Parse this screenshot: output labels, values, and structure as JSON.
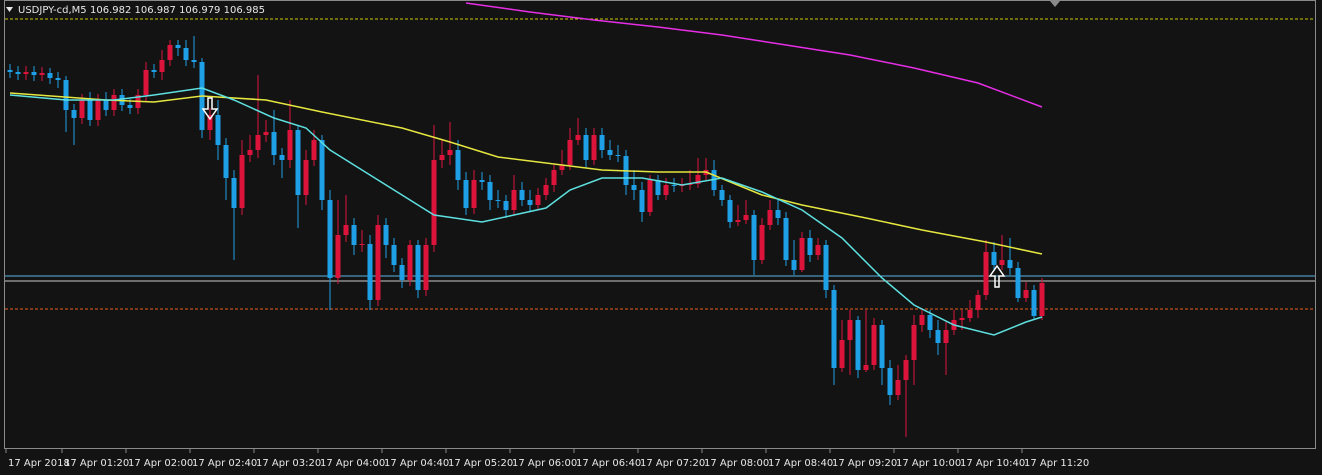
{
  "chart_data": {
    "type": "candlestick",
    "symbol": "USDJPY-cd,M5",
    "ohlc_text": "106.982 106.987 106.979 106.985",
    "ylim": [
      106.81,
      107.26
    ],
    "up_color": "#dc143c",
    "down_color": "#1e9fe6",
    "categories": [
      "17 Apr 2018",
      null,
      null,
      null,
      null,
      null,
      null,
      "17 Apr 01:20",
      null,
      null,
      null,
      null,
      null,
      null,
      null,
      "17 Apr 02:00",
      null,
      null,
      null,
      null,
      null,
      null,
      null,
      "17 Apr 02:40",
      null,
      null,
      null,
      null,
      null,
      null,
      null,
      "17 Apr 03:20",
      null,
      null,
      null,
      null,
      null,
      null,
      null,
      "17 Apr 04:00",
      null,
      null,
      null,
      null,
      null,
      null,
      null,
      "17 Apr 04:40",
      null,
      null,
      null,
      null,
      null,
      null,
      null,
      "17 Apr 05:20",
      null,
      null,
      null,
      null,
      null,
      null,
      null,
      "17 Apr 06:00",
      null,
      null,
      null,
      null,
      null,
      null,
      null,
      "17 Apr 06:40",
      null,
      null,
      null,
      null,
      null,
      null,
      null,
      "17 Apr 07:20",
      null,
      null,
      null,
      null,
      null,
      null,
      null,
      "17 Apr 08:00",
      null,
      null,
      null,
      null,
      null,
      null,
      null,
      "17 Apr 08:40",
      null,
      null,
      null,
      null,
      null,
      null,
      null,
      "17 Apr 09:20",
      null,
      null,
      null,
      null,
      null,
      null,
      null,
      "17 Apr 10:00",
      null,
      null,
      null,
      null,
      null,
      null,
      null,
      "17 Apr 10:40",
      null,
      null,
      null,
      null,
      null,
      null,
      null,
      "17 Apr 11:20",
      null,
      null
    ],
    "open": [
      107.19,
      107.188,
      107.186,
      107.188,
      107.185,
      107.187,
      107.182,
      107.18,
      107.15,
      107.142,
      107.16,
      107.14,
      107.16,
      107.15,
      107.165,
      107.155,
      107.152,
      107.165,
      107.19,
      107.188,
      107.2,
      107.215,
      107.212,
      107.2,
      107.198,
      107.13,
      107.145,
      107.115,
      107.082,
      107.052,
      107.105,
      107.11,
      107.125,
      107.128,
      107.105,
      107.1,
      107.13,
      107.065,
      107.1,
      107.12,
      107.06,
      106.982,
      107.025,
      107.035,
      107.015,
      107.016,
      106.96,
      107.035,
      107.015,
      106.995,
      106.98,
      107.015,
      106.97,
      107.015,
      107.1,
      107.105,
      107.11,
      107.08,
      107.052,
      107.08,
      107.078,
      107.06,
      107.059,
      107.05,
      107.07,
      107.06,
      107.055,
      107.065,
      107.075,
      107.09,
      107.095,
      107.12,
      107.125,
      107.1,
      107.125,
      107.11,
      107.105,
      107.104,
      107.075,
      107.07,
      107.048,
      107.08,
      107.065,
      107.075,
      107.074,
      107.075,
      107.076,
      107.085,
      107.09,
      107.07,
      107.06,
      107.038,
      107.04,
      107.045,
      107,
      107.035,
      107.05,
      107.042,
      107,
      106.99,
      107.022,
      107.005,
      107.015,
      106.97,
      106.892,
      106.92,
      106.94,
      106.89,
      106.895,
      106.935,
      106.892,
      106.865,
      106.88,
      106.9,
      106.935,
      106.945,
      106.93,
      106.917,
      106.93,
      106.94,
      106.942,
      106.95,
      106.965,
      107.008,
      106.995,
      107,
      106.992,
      106.962,
      106.97,
      106.944
    ],
    "high": [
      107.196,
      107.194,
      107.194,
      107.194,
      107.193,
      107.192,
      107.188,
      107.184,
      107.156,
      107.166,
      107.168,
      107.166,
      107.168,
      107.171,
      107.171,
      107.161,
      107.171,
      107.198,
      107.196,
      107.21,
      107.22,
      107.22,
      107.22,
      107.224,
      107.202,
      107.152,
      107.16,
      107.122,
      107.09,
      107.12,
      107.125,
      107.185,
      107.14,
      107.15,
      107.112,
      107.16,
      107.135,
      107.11,
      107.13,
      107.125,
      107.07,
      107.06,
      107.065,
      107.042,
      107.03,
      107.025,
      107.045,
      107.042,
      107.022,
      107.002,
      107.02,
      107.02,
      107.022,
      107.135,
      107.12,
      107.138,
      107.12,
      107.088,
      107.09,
      107.088,
      107.085,
      107.07,
      107.065,
      107.085,
      107.078,
      107.07,
      107.072,
      107.082,
      107.095,
      107.11,
      107.132,
      107.142,
      107.132,
      107.132,
      107.132,
      107.12,
      107.115,
      107.11,
      107.09,
      107.078,
      107.085,
      107.085,
      107.082,
      107.082,
      107.082,
      107.09,
      107.102,
      107.102,
      107.1,
      107.075,
      107.065,
      107.055,
      107.06,
      107.05,
      107.042,
      107.06,
      107.06,
      107.048,
      107.02,
      107.028,
      107.03,
      107.022,
      107.02,
      106.975,
      106.94,
      106.95,
      106.944,
      106.95,
      106.942,
      106.94,
      106.9,
      106.895,
      106.905,
      106.945,
      106.952,
      106.95,
      106.94,
      106.938,
      106.95,
      106.95,
      106.96,
      106.97,
      107.02,
      107.018,
      107.025,
      107.022,
      106.998,
      106.978,
      106.975,
      106.982
    ],
    "low": [
      107.182,
      107.18,
      107.18,
      107.179,
      107.179,
      107.176,
      107.172,
      107.128,
      107.115,
      107.136,
      107.134,
      107.134,
      107.144,
      107.144,
      107.149,
      107.146,
      107.146,
      107.159,
      107.182,
      107.18,
      107.194,
      107.204,
      107.194,
      107.192,
      107.122,
      107.12,
      107.1,
      107.06,
      107,
      107.045,
      107.098,
      107.102,
      107.118,
      107.095,
      107.082,
      107.092,
      107.032,
      107.055,
      107.094,
      107.05,
      106.95,
      106.976,
      107.018,
      107.005,
      107.008,
      106.95,
      106.954,
      107.002,
      106.988,
      106.972,
      106.974,
      106.962,
      106.964,
      107.008,
      107.092,
      107.095,
      107.07,
      107.045,
      107.046,
      107.07,
      107.05,
      107.052,
      107.042,
      107.045,
      107.054,
      107.048,
      107.05,
      107.06,
      107.068,
      107.085,
      107.09,
      107.115,
      107.092,
      107.095,
      107.102,
      107.1,
      107.098,
      107.065,
      107.06,
      107.038,
      107.044,
      107.06,
      107.06,
      107.068,
      107.068,
      107.07,
      107.072,
      107.08,
      107.064,
      107.054,
      107.032,
      107.034,
      107.036,
      106.985,
      106.996,
      107.03,
      107.035,
      106.994,
      106.985,
      106.988,
      106.998,
      107,
      106.962,
      106.875,
      106.888,
      106.885,
      106.882,
      106.888,
      106.89,
      106.875,
      106.855,
      106.86,
      106.823,
      106.875,
      106.928,
      106.922,
      106.905,
      106.885,
      106.925,
      106.93,
      106.938,
      106.942,
      106.96,
      106.99,
      106.99,
      106.985,
      106.958,
      106.958,
      106.94,
      106.94
    ],
    "close": [
      107.188,
      107.186,
      107.188,
      107.185,
      107.187,
      107.182,
      107.18,
      107.15,
      107.142,
      107.16,
      107.14,
      107.16,
      107.15,
      107.165,
      107.155,
      107.152,
      107.165,
      107.19,
      107.188,
      107.2,
      107.215,
      107.212,
      107.2,
      107.198,
      107.13,
      107.145,
      107.115,
      107.082,
      107.052,
      107.105,
      107.11,
      107.125,
      107.128,
      107.105,
      107.1,
      107.13,
      107.065,
      107.1,
      107.12,
      107.06,
      106.982,
      107.025,
      107.035,
      107.015,
      107.016,
      106.96,
      107.035,
      107.015,
      106.995,
      106.98,
      107.015,
      106.97,
      107.015,
      107.1,
      107.105,
      107.11,
      107.08,
      107.052,
      107.08,
      107.078,
      107.06,
      107.059,
      107.05,
      107.07,
      107.06,
      107.055,
      107.065,
      107.075,
      107.09,
      107.095,
      107.12,
      107.125,
      107.1,
      107.125,
      107.11,
      107.105,
      107.104,
      107.075,
      107.07,
      107.048,
      107.08,
      107.065,
      107.075,
      107.074,
      107.075,
      107.076,
      107.085,
      107.09,
      107.07,
      107.06,
      107.038,
      107.04,
      107.045,
      107,
      107.035,
      107.05,
      107.042,
      107,
      106.99,
      107.022,
      107.005,
      107.015,
      106.97,
      106.892,
      106.92,
      106.94,
      106.89,
      106.895,
      106.935,
      106.892,
      106.865,
      106.88,
      106.9,
      106.935,
      106.945,
      106.93,
      106.917,
      106.93,
      106.94,
      106.942,
      106.95,
      106.965,
      107.008,
      106.995,
      107,
      106.992,
      106.962,
      106.97,
      106.944,
      106.977
    ],
    "lines": [
      {
        "color": "#e62ee6",
        "x": [
          57,
          65,
          73,
          81,
          89,
          97,
          105,
          113,
          121,
          129
        ],
        "values": [
          107.257,
          107.248,
          107.24,
          107.233,
          107.225,
          107.215,
          107.205,
          107.192,
          107.177,
          107.153
        ]
      },
      {
        "color": "#e6e640",
        "x": [
          0,
          12,
          18,
          24,
          32,
          39,
          49,
          55,
          61,
          69,
          74,
          81,
          87,
          94,
          99,
          107,
          114,
          122,
          129
        ],
        "values": [
          107.167,
          107.16,
          107.158,
          107.164,
          107.16,
          107.148,
          107.132,
          107.118,
          107.103,
          107.095,
          107.09,
          107.088,
          107.088,
          107.065,
          107.055,
          107.042,
          107.03,
          107.018,
          107.006
        ]
      },
      {
        "color": "#5ee0e0",
        "x": [
          0,
          7,
          13,
          18,
          24,
          28,
          33,
          37,
          40,
          44,
          49,
          53,
          59,
          63,
          67,
          70,
          74,
          79,
          84,
          89,
          94,
          99,
          104,
          109,
          113,
          118,
          123,
          127,
          129
        ],
        "values": [
          107.165,
          107.16,
          107.16,
          107.165,
          107.172,
          107.16,
          107.142,
          107.132,
          107.11,
          107.09,
          107.065,
          107.045,
          107.038,
          107.045,
          107.052,
          107.07,
          107.082,
          107.082,
          107.075,
          107.082,
          107.068,
          107.05,
          107.022,
          106.982,
          106.955,
          106.935,
          106.925,
          106.938,
          106.943
        ]
      }
    ],
    "levels": [
      {
        "value": 107.241,
        "color": "#c8c800",
        "dashed": true
      },
      {
        "value": 106.984,
        "color": "#5ab4e6",
        "dashed": false
      },
      {
        "value": 106.979,
        "color": "#c8c8c8",
        "dashed": false
      },
      {
        "value": 106.951,
        "color": "#e8601c",
        "dashed": true
      }
    ]
  }
}
